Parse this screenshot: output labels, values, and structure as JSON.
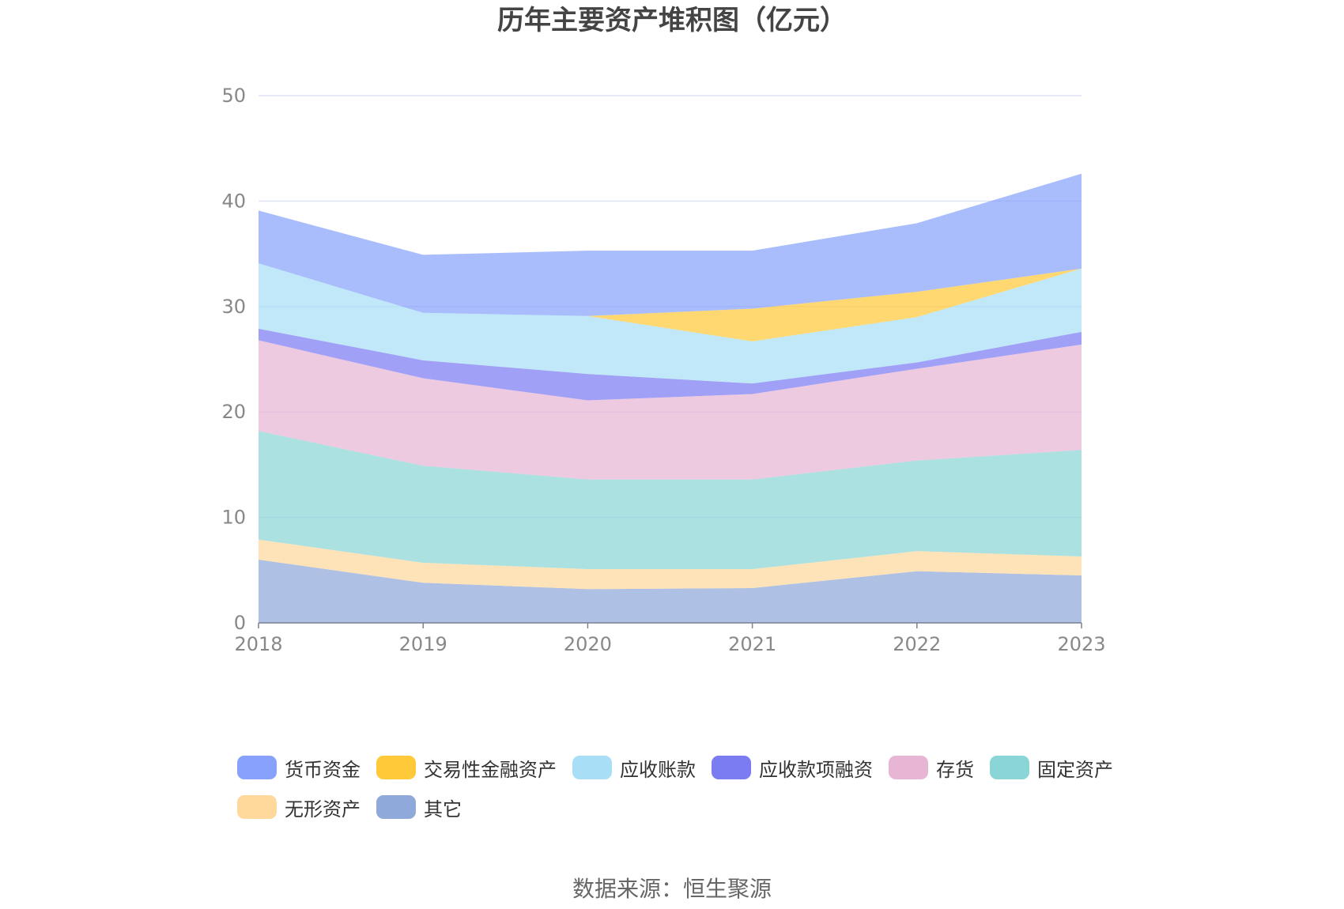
{
  "title": "历年主要资产堆积图（亿元）",
  "source": "数据来源：恒生聚源",
  "chart_data": {
    "type": "area",
    "stacked": true,
    "title": "历年主要资产堆积图（亿元）",
    "categories": [
      "2018",
      "2019",
      "2020",
      "2021",
      "2022",
      "2023"
    ],
    "ylim": [
      0,
      50
    ],
    "yticks": [
      0,
      10,
      20,
      30,
      40,
      50
    ],
    "grid": true,
    "legend_position": "bottom",
    "series": [
      {
        "name": "其它",
        "color": "#8fa9da",
        "values": [
          6.0,
          3.8,
          3.2,
          3.3,
          4.9,
          4.5
        ]
      },
      {
        "name": "无形资产",
        "color": "#ffd89c",
        "values": [
          1.9,
          1.9,
          1.9,
          1.8,
          1.9,
          1.8
        ]
      },
      {
        "name": "固定资产",
        "color": "#8ad5d6",
        "values": [
          10.3,
          9.2,
          8.5,
          8.5,
          8.6,
          10.1
        ]
      },
      {
        "name": "存货",
        "color": "#e7b6d5",
        "values": [
          8.6,
          8.3,
          7.5,
          8.1,
          8.7,
          10.0
        ]
      },
      {
        "name": "应收款项融资",
        "color": "#7b7cf2",
        "values": [
          1.1,
          1.7,
          2.5,
          1.0,
          0.6,
          1.2
        ]
      },
      {
        "name": "应收账款",
        "color": "#a8dff7",
        "values": [
          6.2,
          4.5,
          5.5,
          4.0,
          4.3,
          6.0
        ]
      },
      {
        "name": "交易性金融资产",
        "color": "#ffc93a",
        "values": [
          0.0,
          0.0,
          0.0,
          3.1,
          2.4,
          0.0
        ]
      },
      {
        "name": "货币资金",
        "color": "#88a2fb",
        "values": [
          5.0,
          5.5,
          6.2,
          5.5,
          6.5,
          9.0
        ]
      }
    ]
  },
  "legend": [
    {
      "label": "货币资金",
      "color": "#88a2fb"
    },
    {
      "label": "交易性金融资产",
      "color": "#ffc93a"
    },
    {
      "label": "应收账款",
      "color": "#a8dff7"
    },
    {
      "label": "应收款项融资",
      "color": "#7b7cf2"
    },
    {
      "label": "存货",
      "color": "#e7b6d5"
    },
    {
      "label": "固定资产",
      "color": "#8ad5d6"
    },
    {
      "label": "无形资产",
      "color": "#ffd89c"
    },
    {
      "label": "其它",
      "color": "#8fa9da"
    }
  ]
}
